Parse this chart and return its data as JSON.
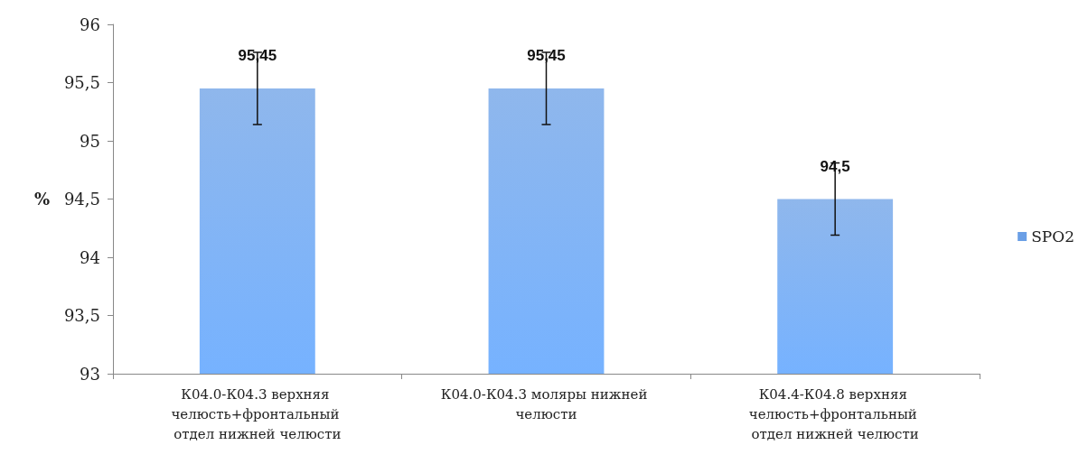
{
  "chart_data": {
    "type": "bar",
    "ylabel": "%",
    "categories": [
      "К04.0-К04.3 верхняя челюсть+фронтальный отдел нижней челюсти",
      "К04.0-К04.3 моляры нижней челюсти",
      "К04.4-К04.8 верхняя челюсть+фронтальный отдел нижней челюсти"
    ],
    "series": [
      {
        "name": "SPO2",
        "color": "#6a9fe6",
        "values": [
          95.45,
          95.45,
          94.5
        ],
        "errors": [
          0.31,
          0.31,
          0.31
        ],
        "value_labels": [
          "95,45",
          "95,45",
          "94,5"
        ]
      }
    ],
    "ylim": [
      93,
      96
    ],
    "yticks": [
      93,
      {
        "value": 93.5,
        "label": "93,5"
      },
      94,
      {
        "value": 94.5,
        "label": "94,5"
      },
      95,
      {
        "value": 95.5,
        "label": "95,5"
      },
      96
    ],
    "grid": false,
    "legend": "right"
  }
}
